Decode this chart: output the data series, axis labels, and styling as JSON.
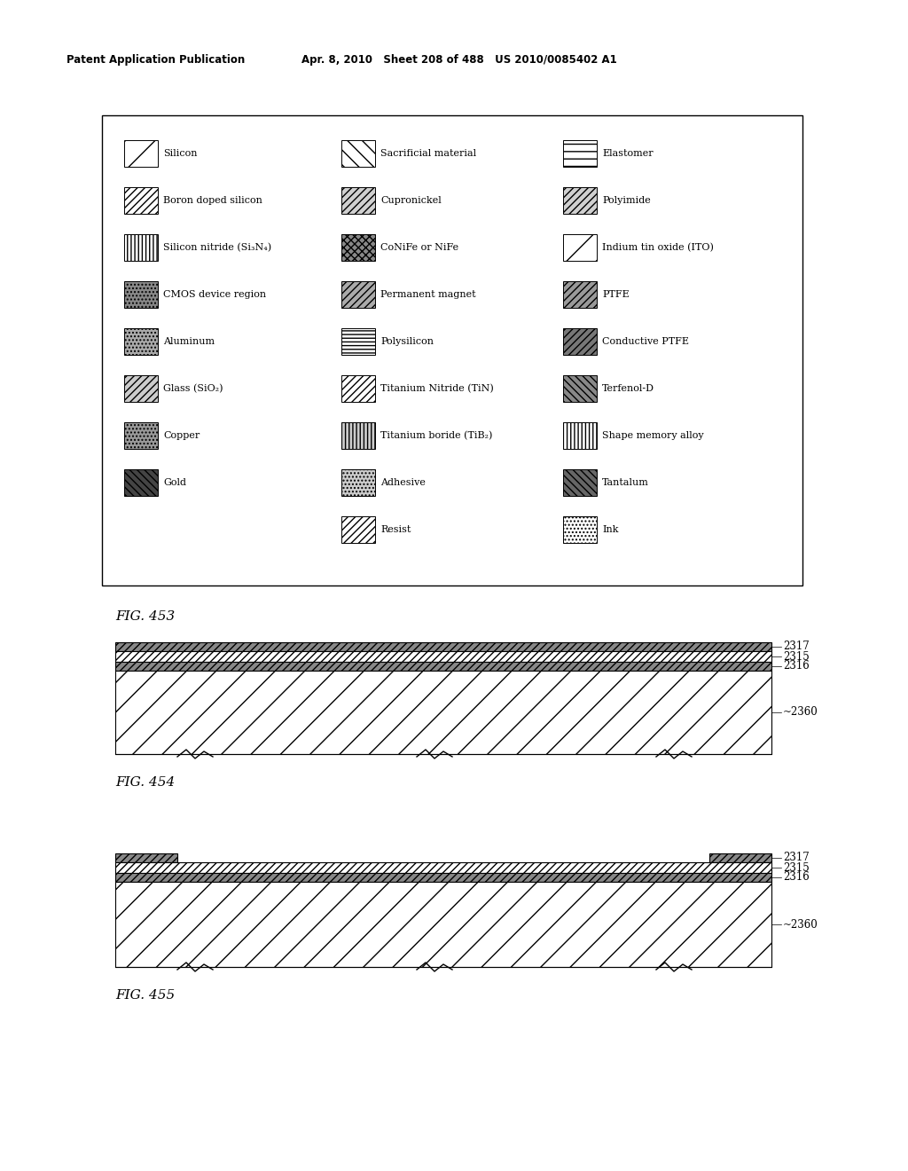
{
  "header_left": "Patent Application Publication",
  "header_mid": "Apr. 8, 2010   Sheet 208 of 488   US 2010/0085402 A1",
  "fig453_caption": "FIG. 453",
  "fig454_caption": "FIG. 454",
  "fig455_caption": "FIG. 455",
  "legend_items": [
    [
      "Silicon",
      "Sacrificial material",
      "Elastomer"
    ],
    [
      "Boron doped silicon",
      "Cupronickel",
      "Polyimide"
    ],
    [
      "Silicon nitride (Si₃N₄)",
      "CoNiFe or NiFe",
      "Indium tin oxide (ITO)"
    ],
    [
      "CMOS device region",
      "Permanent magnet",
      "PTFE"
    ],
    [
      "Aluminum",
      "Polysilicon",
      "Conductive PTFE"
    ],
    [
      "Glass (SiO₂)",
      "Titanium Nitride (TiN)",
      "Terfenol-D"
    ],
    [
      "Copper",
      "Titanium boride (TiB₂)",
      "Shape memory alloy"
    ],
    [
      "Gold",
      "Adhesive",
      "Tantalum"
    ],
    [
      "",
      "Resist",
      "Ink"
    ]
  ],
  "bg_color": "#ffffff",
  "text_color": "#000000"
}
